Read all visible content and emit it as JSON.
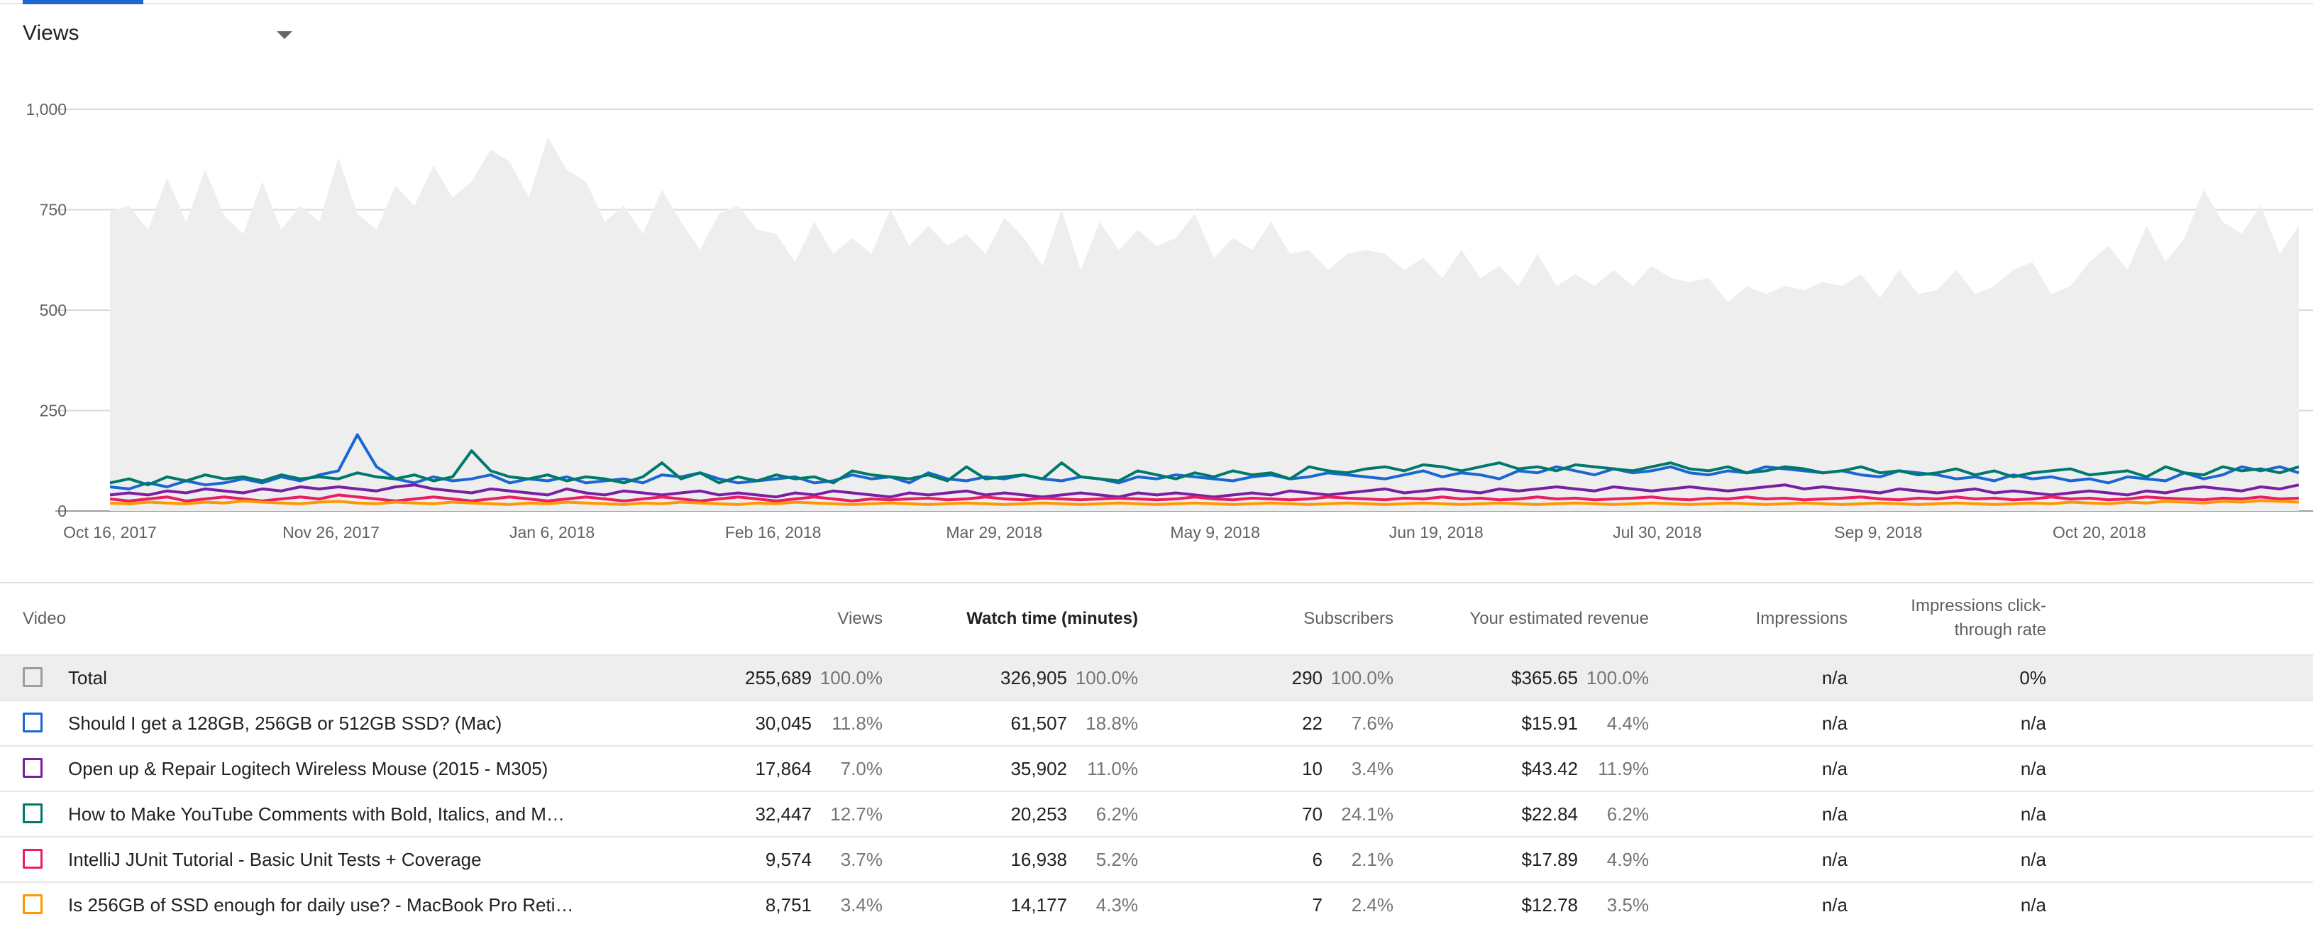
{
  "metric_selector": {
    "label": "Views"
  },
  "colors": {
    "total_area": "#eeeeee",
    "series": [
      "#1a67d2",
      "#7b1fa2",
      "#00796b",
      "#e91e63",
      "#ff9800"
    ],
    "tab_indicator": "#1a67d2"
  },
  "chart_data": {
    "type": "line",
    "title": "",
    "xlabel": "",
    "ylabel": "",
    "ylim": [
      0,
      1000
    ],
    "y_ticks": [
      "0",
      "250",
      "500",
      "750",
      "1,000"
    ],
    "x_ticks": [
      "Oct 16, 2017",
      "Nov 26, 2017",
      "Jan 6, 2018",
      "Feb 16, 2018",
      "Mar 29, 2018",
      "May 9, 2018",
      "Jun 19, 2018",
      "Jul 30, 2018",
      "Sep 9, 2018",
      "Oct 20, 2018"
    ],
    "x_range": [
      "2017-10-16",
      "2018-11-26"
    ],
    "grid": true,
    "series": [
      {
        "name": "Total",
        "style": "area",
        "values": [
          745,
          760,
          700,
          830,
          720,
          850,
          735,
          690,
          820,
          700,
          760,
          720,
          880,
          740,
          700,
          810,
          760,
          860,
          780,
          820,
          900,
          870,
          780,
          930,
          850,
          820,
          720,
          760,
          690,
          800,
          720,
          650,
          740,
          760,
          700,
          690,
          620,
          720,
          640,
          680,
          640,
          750,
          660,
          710,
          660,
          690,
          640,
          730,
          680,
          610,
          750,
          600,
          720,
          650,
          700,
          660,
          680,
          740,
          630,
          680,
          650,
          720,
          640,
          650,
          600,
          640,
          650,
          640,
          600,
          630,
          580,
          650,
          580,
          610,
          560,
          640,
          560,
          590,
          560,
          600,
          560,
          610,
          580,
          570,
          580,
          520,
          560,
          540,
          560,
          550,
          570,
          560,
          590,
          530,
          600,
          540,
          550,
          600,
          540,
          560,
          600,
          620,
          540,
          560,
          620,
          660,
          600,
          710,
          620,
          680,
          800,
          720,
          690,
          760,
          640,
          710
        ]
      },
      {
        "name": "Should I get a 128GB, 256GB or 512GB SSD? (Mac)",
        "style": "line",
        "values": [
          60,
          55,
          70,
          60,
          75,
          65,
          70,
          80,
          70,
          85,
          75,
          90,
          100,
          190,
          110,
          80,
          70,
          85,
          75,
          80,
          90,
          70,
          80,
          75,
          85,
          70,
          75,
          80,
          70,
          90,
          85,
          95,
          80,
          70,
          75,
          80,
          85,
          70,
          75,
          90,
          80,
          85,
          70,
          95,
          80,
          75,
          85,
          80,
          90,
          80,
          75,
          85,
          80,
          70,
          85,
          80,
          90,
          85,
          80,
          75,
          85,
          90,
          80,
          85,
          95,
          90,
          85,
          80,
          90,
          100,
          85,
          95,
          90,
          80,
          100,
          95,
          110,
          100,
          90,
          105,
          95,
          100,
          110,
          95,
          90,
          100,
          95,
          110,
          105,
          100,
          95,
          100,
          90,
          85,
          100,
          95,
          90,
          80,
          85,
          75,
          90,
          80,
          85,
          75,
          80,
          70,
          85,
          80,
          75,
          95,
          80,
          90,
          110,
          100,
          110,
          95
        ]
      },
      {
        "name": "Open up & Repair Logitech Wireless Mouse (2015 - M305)",
        "style": "line",
        "values": [
          40,
          45,
          40,
          50,
          45,
          55,
          50,
          45,
          55,
          50,
          60,
          55,
          60,
          55,
          50,
          60,
          65,
          55,
          50,
          45,
          55,
          50,
          45,
          40,
          55,
          45,
          40,
          50,
          45,
          40,
          45,
          50,
          40,
          45,
          40,
          35,
          45,
          40,
          50,
          45,
          40,
          35,
          45,
          40,
          45,
          50,
          40,
          45,
          40,
          35,
          40,
          45,
          40,
          35,
          45,
          40,
          45,
          40,
          35,
          40,
          45,
          40,
          50,
          45,
          40,
          45,
          50,
          55,
          45,
          50,
          55,
          50,
          45,
          55,
          50,
          55,
          60,
          55,
          50,
          60,
          55,
          50,
          55,
          60,
          55,
          50,
          55,
          60,
          65,
          55,
          60,
          55,
          50,
          45,
          55,
          50,
          45,
          50,
          55,
          45,
          50,
          45,
          40,
          45,
          50,
          45,
          40,
          50,
          45,
          55,
          60,
          55,
          50,
          60,
          55,
          65
        ]
      },
      {
        "name": "How to Make YouTube Comments with Bold, Italics, and M…",
        "style": "line",
        "values": [
          70,
          80,
          65,
          85,
          75,
          90,
          80,
          85,
          75,
          90,
          80,
          85,
          80,
          95,
          85,
          80,
          90,
          75,
          85,
          150,
          100,
          85,
          80,
          90,
          75,
          85,
          80,
          70,
          85,
          120,
          80,
          95,
          70,
          85,
          75,
          90,
          80,
          85,
          70,
          100,
          90,
          85,
          80,
          90,
          75,
          110,
          80,
          85,
          90,
          80,
          120,
          85,
          80,
          75,
          100,
          90,
          80,
          95,
          85,
          100,
          90,
          95,
          80,
          110,
          100,
          95,
          105,
          110,
          100,
          115,
          110,
          100,
          110,
          120,
          105,
          110,
          100,
          115,
          110,
          105,
          100,
          110,
          120,
          105,
          100,
          110,
          95,
          100,
          110,
          105,
          95,
          100,
          110,
          95,
          100,
          90,
          95,
          105,
          90,
          100,
          85,
          95,
          100,
          105,
          90,
          95,
          100,
          85,
          110,
          95,
          90,
          110,
          100,
          105,
          95,
          110
        ]
      },
      {
        "name": "IntelliJ JUnit Tutorial - Basic Unit Tests + Coverage",
        "style": "line",
        "values": [
          30,
          25,
          30,
          35,
          25,
          30,
          35,
          30,
          25,
          30,
          35,
          30,
          40,
          35,
          30,
          25,
          30,
          35,
          30,
          25,
          30,
          35,
          30,
          25,
          30,
          35,
          30,
          25,
          30,
          35,
          30,
          25,
          30,
          35,
          30,
          25,
          30,
          35,
          30,
          25,
          30,
          28,
          30,
          32,
          28,
          30,
          35,
          30,
          28,
          32,
          30,
          28,
          30,
          32,
          30,
          28,
          30,
          35,
          30,
          28,
          32,
          30,
          28,
          30,
          35,
          32,
          30,
          28,
          32,
          30,
          35,
          30,
          32,
          28,
          30,
          35,
          30,
          32,
          28,
          30,
          32,
          35,
          30,
          28,
          32,
          30,
          35,
          30,
          32,
          28,
          30,
          32,
          35,
          30,
          28,
          32,
          30,
          35,
          30,
          32,
          28,
          30,
          35,
          30,
          32,
          28,
          30,
          35,
          32,
          30,
          28,
          32,
          30,
          35,
          30,
          32
        ]
      },
      {
        "name": "Is 256GB of SSD enough for daily use? - MacBook Pro Reti…",
        "style": "line",
        "values": [
          20,
          18,
          22,
          20,
          18,
          22,
          20,
          25,
          22,
          20,
          18,
          22,
          24,
          20,
          18,
          22,
          20,
          18,
          22,
          20,
          18,
          16,
          20,
          18,
          22,
          20,
          18,
          16,
          20,
          18,
          22,
          20,
          18,
          16,
          20,
          18,
          22,
          20,
          18,
          16,
          18,
          20,
          18,
          16,
          18,
          20,
          18,
          16,
          18,
          20,
          18,
          16,
          18,
          20,
          18,
          16,
          18,
          20,
          18,
          16,
          18,
          20,
          18,
          16,
          18,
          20,
          18,
          16,
          18,
          20,
          18,
          16,
          18,
          20,
          18,
          16,
          18,
          20,
          18,
          16,
          18,
          20,
          18,
          16,
          18,
          20,
          18,
          16,
          18,
          20,
          18,
          16,
          18,
          20,
          18,
          16,
          18,
          20,
          18,
          16,
          18,
          20,
          18,
          22,
          20,
          18,
          22,
          20,
          24,
          22,
          20,
          24,
          22,
          26,
          24,
          22
        ]
      }
    ]
  },
  "table": {
    "headers": {
      "video": "Video",
      "views": "Views",
      "watch_time": "Watch time (minutes)",
      "subscribers": "Subscribers",
      "revenue": "Your estimated revenue",
      "impressions": "Impressions",
      "ctr_line1": "Impressions click-",
      "ctr_line2": "through rate"
    },
    "rows": [
      {
        "title": "Total",
        "views": "255,689",
        "views_pct": "100.0%",
        "watch": "326,905",
        "watch_pct": "100.0%",
        "subs": "290",
        "subs_pct": "100.0%",
        "rev": "$365.65",
        "rev_pct": "100.0%",
        "impr": "n/a",
        "ctr": "0%"
      },
      {
        "title": "Should I get a 128GB, 256GB or 512GB SSD? (Mac)",
        "views": "30,045",
        "views_pct": "11.8%",
        "watch": "61,507",
        "watch_pct": "18.8%",
        "subs": "22",
        "subs_pct": "7.6%",
        "rev": "$15.91",
        "rev_pct": "4.4%",
        "impr": "n/a",
        "ctr": "n/a"
      },
      {
        "title": "Open up & Repair Logitech Wireless Mouse (2015 - M305)",
        "views": "17,864",
        "views_pct": "7.0%",
        "watch": "35,902",
        "watch_pct": "11.0%",
        "subs": "10",
        "subs_pct": "3.4%",
        "rev": "$43.42",
        "rev_pct": "11.9%",
        "impr": "n/a",
        "ctr": "n/a"
      },
      {
        "title": "How to Make YouTube Comments with Bold, Italics, and M…",
        "views": "32,447",
        "views_pct": "12.7%",
        "watch": "20,253",
        "watch_pct": "6.2%",
        "subs": "70",
        "subs_pct": "24.1%",
        "rev": "$22.84",
        "rev_pct": "6.2%",
        "impr": "n/a",
        "ctr": "n/a"
      },
      {
        "title": "IntelliJ JUnit Tutorial - Basic Unit Tests + Coverage",
        "views": "9,574",
        "views_pct": "3.7%",
        "watch": "16,938",
        "watch_pct": "5.2%",
        "subs": "6",
        "subs_pct": "2.1%",
        "rev": "$17.89",
        "rev_pct": "4.9%",
        "impr": "n/a",
        "ctr": "n/a"
      },
      {
        "title": "Is 256GB of SSD enough for daily use? - MacBook Pro Reti…",
        "views": "8,751",
        "views_pct": "3.4%",
        "watch": "14,177",
        "watch_pct": "4.3%",
        "subs": "7",
        "subs_pct": "2.4%",
        "rev": "$12.78",
        "rev_pct": "3.5%",
        "impr": "n/a",
        "ctr": "n/a"
      }
    ]
  }
}
